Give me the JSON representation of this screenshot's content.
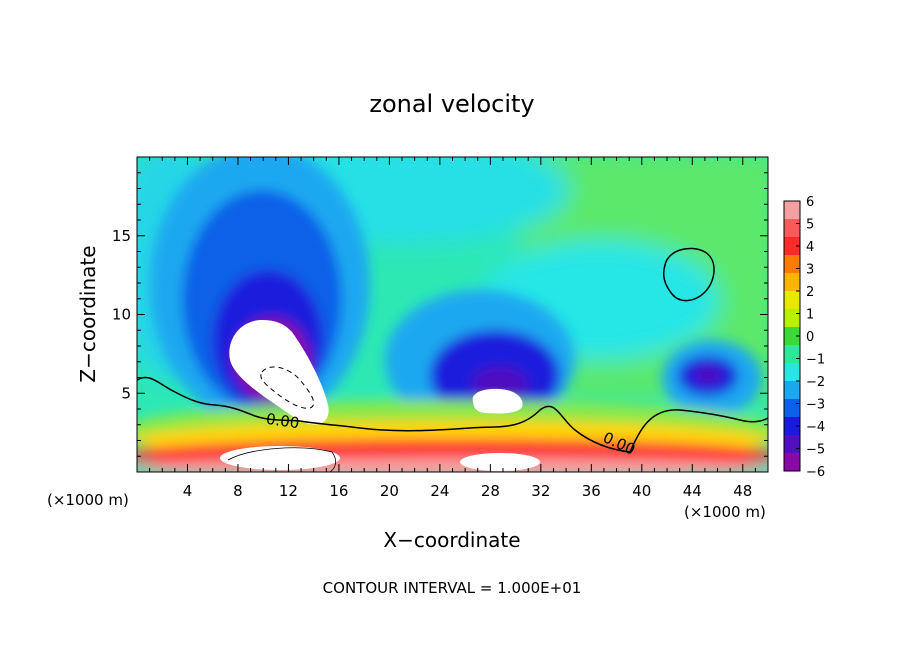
{
  "chart_data": {
    "type": "heatmap",
    "title": "zonal velocity",
    "xlabel": "X−coordinate",
    "ylabel": "Z−coordinate",
    "x_unit_left": "(×1000 m)",
    "x_unit_right": "(×1000 m)",
    "footer": "CONTOUR INTERVAL = 1.000E+01",
    "xlim": [
      0,
      50
    ],
    "ylim": [
      0,
      20
    ],
    "x_ticks": [
      4,
      8,
      12,
      16,
      20,
      24,
      28,
      32,
      36,
      40,
      44,
      48
    ],
    "x_tick_labels": [
      "4",
      "8",
      "12",
      "16",
      "20",
      "24",
      "28",
      "32",
      "36",
      "40",
      "44",
      "48"
    ],
    "y_ticks": [
      5,
      10,
      15
    ],
    "y_tick_labels": [
      "5",
      "10",
      "15"
    ],
    "colorbar": {
      "min": -6,
      "max": 6,
      "labels": [
        "6",
        "5",
        "4",
        "3",
        "2",
        "1",
        "0",
        "−1",
        "−2",
        "−3",
        "−4",
        "−5",
        "−6"
      ],
      "colors": [
        "#f4a0a0",
        "#ff5a5a",
        "#ff2a2a",
        "#ff7a00",
        "#ffb400",
        "#e8e800",
        "#b8f000",
        "#3ad83a",
        "#2ee89a",
        "#28e6e6",
        "#1aa8f0",
        "#0a60e8",
        "#1a1adc",
        "#5010c0",
        "#8a0aa8"
      ]
    },
    "contour_labels": [
      "0.00",
      "0.00"
    ],
    "features": [
      {
        "kind": "min_core",
        "x": 10.5,
        "z": 7.5
      },
      {
        "kind": "min_core",
        "x": 28.8,
        "z": 4.6
      },
      {
        "kind": "min_core",
        "x": 45.2,
        "z": 6.2
      },
      {
        "kind": "zero_contour_loop",
        "x": 43.5,
        "z": 12.5
      }
    ]
  }
}
